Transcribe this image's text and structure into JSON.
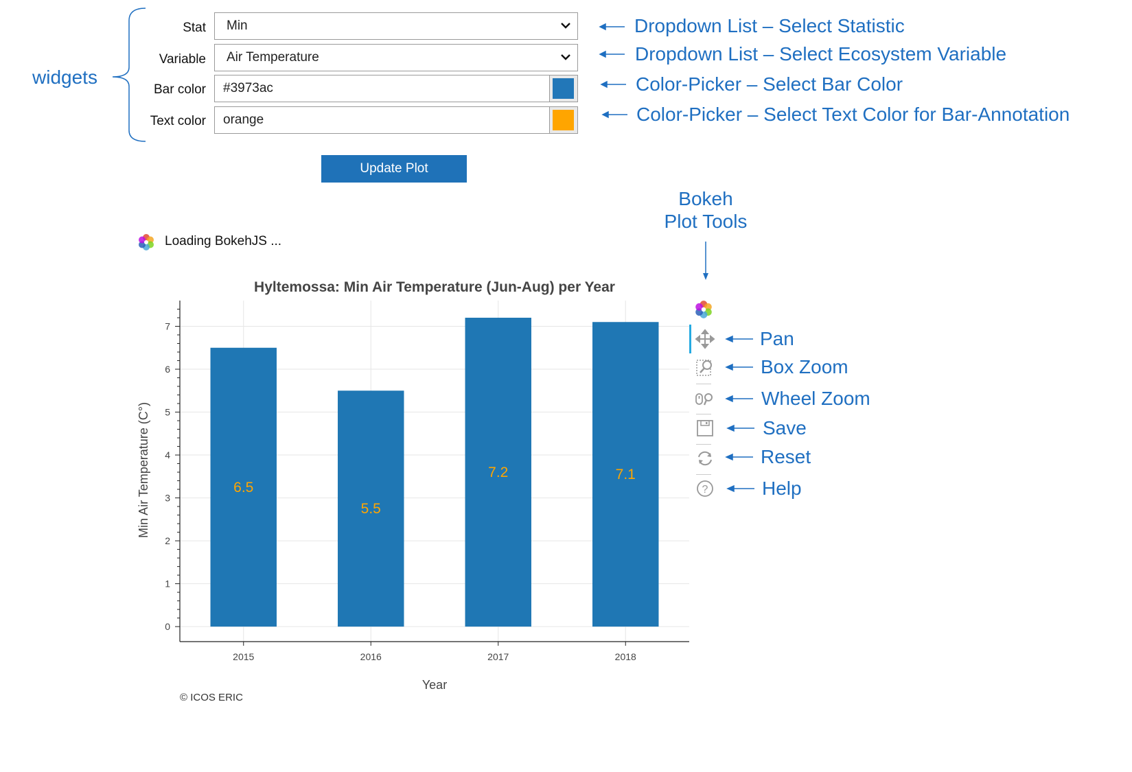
{
  "widgets_label": "widgets",
  "form": {
    "stat": {
      "label": "Stat",
      "value": "Min"
    },
    "variable": {
      "label": "Variable",
      "value": "Air Temperature"
    },
    "bar_color": {
      "label": "Bar color",
      "value": "#3973ac",
      "swatch": "#2277b8"
    },
    "text_color": {
      "label": "Text color",
      "value": "orange",
      "swatch": "#ffa500"
    },
    "update_button": "Update Plot"
  },
  "annotations": {
    "stat": "Dropdown List – Select Statistic",
    "variable": "Dropdown List – Select Ecosystem Variable",
    "bar_color": "Color-Picker – Select Bar Color",
    "text_color": "Color-Picker – Select Text Color for Bar-Annotation",
    "bokeh_tools_line1": "Bokeh",
    "bokeh_tools_line2": "Plot Tools"
  },
  "loading_text": "Loading BokehJS ...",
  "tools": [
    {
      "name": "pan",
      "label": "Pan"
    },
    {
      "name": "box-zoom",
      "label": "Box Zoom"
    },
    {
      "name": "wheel-zoom",
      "label": "Wheel Zoom"
    },
    {
      "name": "save",
      "label": "Save"
    },
    {
      "name": "reset",
      "label": "Reset"
    },
    {
      "name": "help",
      "label": "Help"
    }
  ],
  "copyright": "© ICOS ERIC",
  "chart_data": {
    "type": "bar",
    "title": "Hyltemossa: Min  Air Temperature  (Jun-Aug)  per Year",
    "xlabel": "Year",
    "ylabel": "Min  Air Temperature (C°)",
    "categories": [
      "2015",
      "2016",
      "2017",
      "2018"
    ],
    "values": [
      6.5,
      5.5,
      7.2,
      7.1
    ],
    "data_labels": [
      "6.5",
      "5.5",
      "7.2",
      "7.1"
    ],
    "ylim": [
      -0.35,
      7.6
    ],
    "yticks": [
      0,
      1,
      2,
      3,
      4,
      5,
      6,
      7
    ],
    "bar_color": "#1f77b4",
    "label_color": "#ffa500",
    "grid": true
  }
}
